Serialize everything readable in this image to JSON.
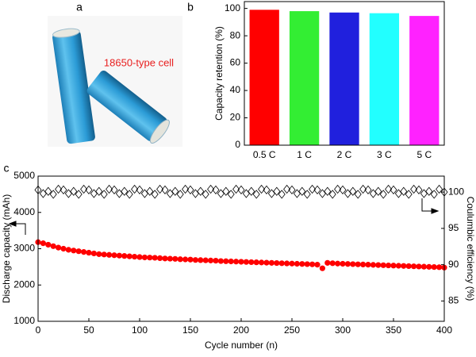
{
  "photo": {
    "panel_label": "a",
    "caption": "18650-type cell"
  },
  "chart_data": [
    {
      "type": "bar",
      "panel_label": "b",
      "y_label": "Capacity retention (%)",
      "categories": [
        "0.5 C",
        "1 C",
        "2 C",
        "3 C",
        "5 C"
      ],
      "values": [
        99,
        98,
        97,
        96.5,
        94.5
      ],
      "colors": [
        "#ff0000",
        "#33ee33",
        "#2020dd",
        "#22ffff",
        "#ff22ff"
      ],
      "ylim": [
        0,
        105
      ],
      "yticks": [
        0,
        20,
        40,
        60,
        80,
        100
      ]
    },
    {
      "type": "line",
      "panel_label": "c",
      "x_label": "Cycle number (n)",
      "y_label": "Discharge capacity (mAh)",
      "y2_label": "Coulumbic efficiency (%)",
      "xlim": [
        0,
        400
      ],
      "xticks": [
        0,
        50,
        100,
        150,
        200,
        250,
        300,
        350,
        400
      ],
      "ylim": [
        1000,
        5000
      ],
      "yticks": [
        1000,
        2000,
        3000,
        4000,
        5000
      ],
      "y2lim": [
        82.2,
        102.2
      ],
      "y2ticks": [
        85,
        90,
        95,
        100
      ],
      "x": [
        0,
        5,
        10,
        15,
        20,
        25,
        30,
        35,
        40,
        45,
        50,
        55,
        60,
        65,
        70,
        75,
        80,
        85,
        90,
        95,
        100,
        105,
        110,
        115,
        120,
        125,
        130,
        135,
        140,
        145,
        150,
        155,
        160,
        165,
        170,
        175,
        180,
        185,
        190,
        195,
        200,
        205,
        210,
        215,
        220,
        225,
        230,
        235,
        240,
        245,
        250,
        255,
        260,
        265,
        270,
        275,
        280,
        285,
        290,
        295,
        300,
        305,
        310,
        315,
        320,
        325,
        330,
        335,
        340,
        345,
        350,
        355,
        360,
        365,
        370,
        375,
        380,
        385,
        390,
        395,
        400
      ],
      "series": [
        {
          "color": "#ff0000",
          "marker": "circle",
          "values": [
            3180,
            3150,
            3110,
            3070,
            3030,
            3000,
            2970,
            2950,
            2930,
            2910,
            2890,
            2870,
            2850,
            2840,
            2830,
            2820,
            2810,
            2800,
            2790,
            2780,
            2770,
            2760,
            2755,
            2750,
            2740,
            2730,
            2725,
            2720,
            2710,
            2705,
            2700,
            2690,
            2685,
            2680,
            2675,
            2670,
            2660,
            2655,
            2650,
            2645,
            2640,
            2635,
            2630,
            2625,
            2620,
            2615,
            2610,
            2605,
            2600,
            2595,
            2590,
            2585,
            2580,
            2575,
            2570,
            2560,
            2460,
            2610,
            2600,
            2590,
            2585,
            2580,
            2575,
            2570,
            2565,
            2560,
            2555,
            2550,
            2545,
            2540,
            2535,
            2530,
            2525,
            2520,
            2515,
            2510,
            2505,
            2500,
            2495,
            2490,
            2480
          ]
        },
        {
          "color": "#000000",
          "marker": "diamond",
          "axis": "y2",
          "values": [
            100.3,
            99.8,
            100.1,
            99.7,
            100.4,
            100.3,
            99.8,
            100.1,
            99.7,
            100.4,
            100.3,
            99.8,
            100.1,
            99.7,
            100.4,
            100.3,
            99.8,
            100.1,
            99.7,
            100.4,
            100.3,
            99.8,
            100.1,
            99.7,
            100.4,
            100.3,
            99.8,
            100.1,
            99.7,
            100.4,
            100.3,
            99.8,
            100.1,
            99.7,
            100.4,
            100.3,
            99.8,
            100.1,
            99.7,
            100.4,
            100.3,
            99.8,
            100.1,
            99.7,
            100.4,
            100.3,
            99.8,
            100.1,
            99.7,
            100.4,
            100.3,
            99.8,
            100.1,
            99.7,
            100.4,
            100.3,
            99.8,
            100.1,
            99.7,
            100.4,
            100.3,
            99.8,
            100.1,
            99.7,
            100.4,
            100.3,
            99.8,
            100.1,
            99.7,
            100.4,
            100.3,
            99.8,
            100.1,
            99.7,
            100.4,
            100.3,
            99.8,
            100.1,
            99.7,
            100.4,
            100.0
          ]
        }
      ]
    }
  ]
}
